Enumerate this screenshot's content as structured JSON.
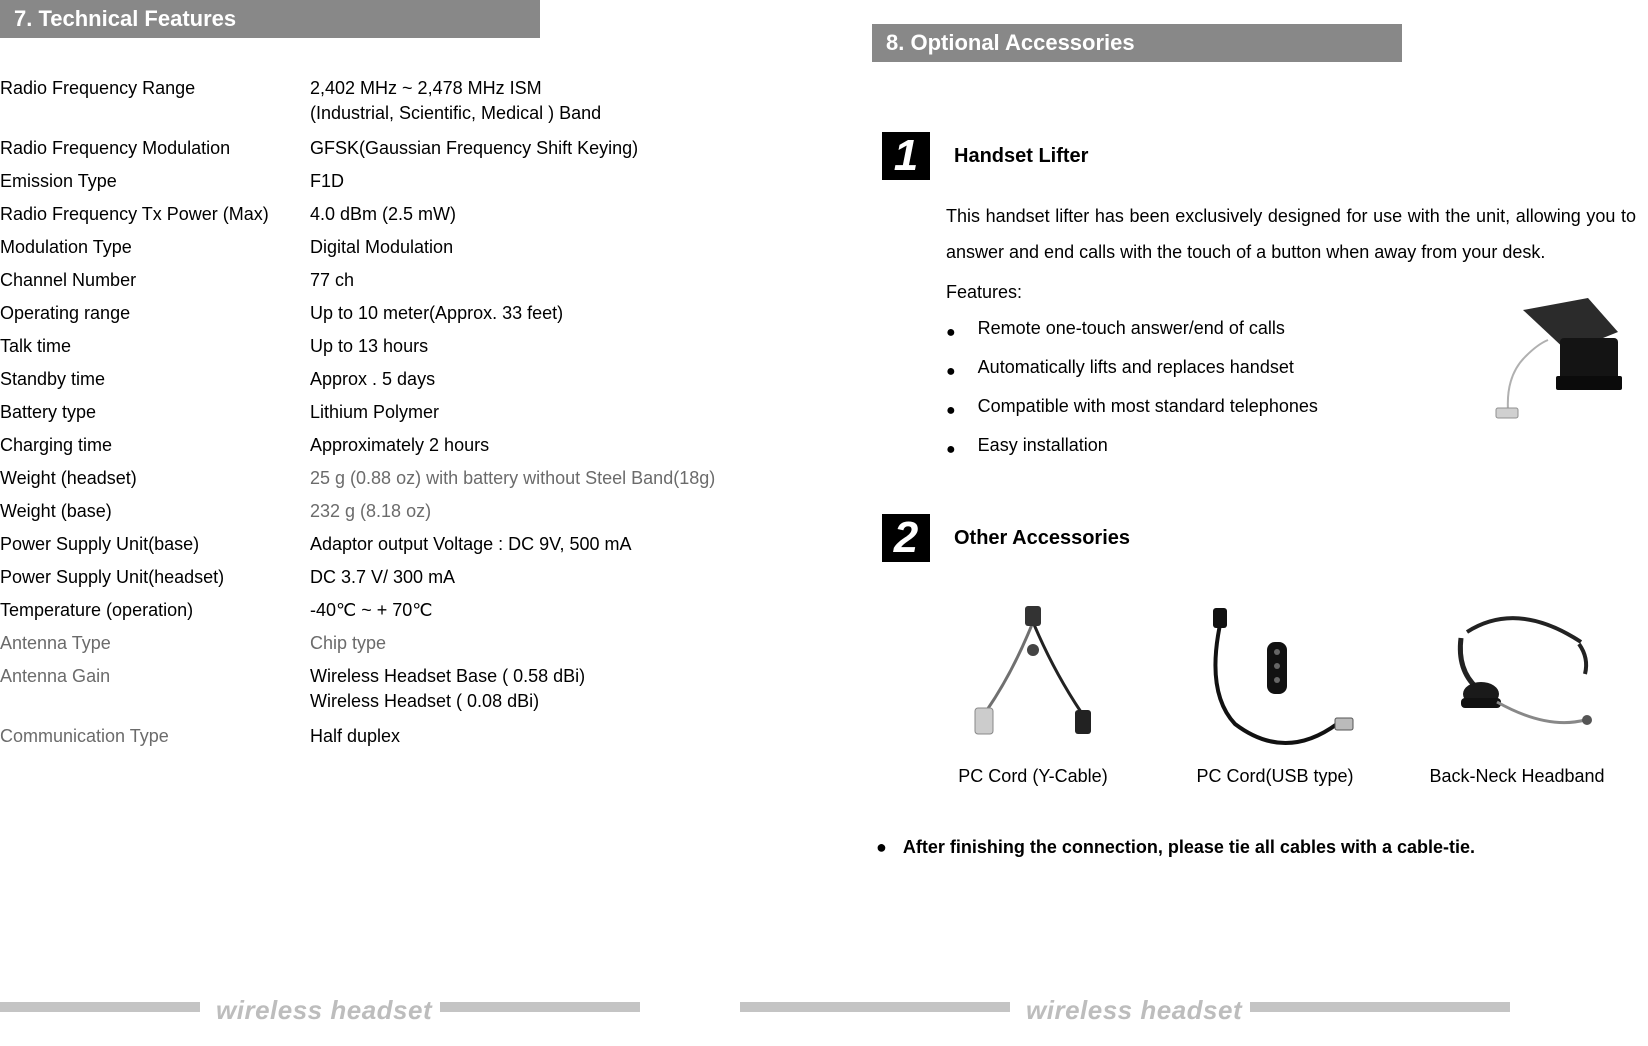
{
  "left": {
    "header": "7. Technical Features",
    "specs": [
      {
        "label": "Radio Frequency Range",
        "value": "2,402 MHz ~ 2,478 MHz ISM",
        "sub": "(Industrial, Scientific, Medical ) Band"
      },
      {
        "label": "Radio Frequency Modulation",
        "value": "GFSK(Gaussian Frequency Shift Keying)"
      },
      {
        "label": "Emission Type",
        "value": " F1D"
      },
      {
        "label": "Radio Frequency Tx Power (Max)",
        "value": "4.0 dBm (2.5 mW)"
      },
      {
        "label": "Modulation Type",
        "value": " Digital Modulation"
      },
      {
        "label": "Channel Number",
        "value": " 77 ch"
      },
      {
        "label": "Operating range",
        "value": "Up to 10 meter(Approx. 33 feet)"
      },
      {
        "label": "Talk time",
        "value": "Up to 13 hours"
      },
      {
        "label": "Standby time",
        "value": "Approx . 5 days"
      },
      {
        "label": "Battery type",
        "value": "Lithium Polymer"
      },
      {
        "label": "Charging time",
        "value": "Approximately 2 hours"
      },
      {
        "label": "Weight (headset)",
        "value": "25 g (0.88 oz) with battery without Steel Band(18g)",
        "gray_value": true
      },
      {
        "label": "Weight (base)",
        "value": "232 g (8.18 oz)",
        "gray_value": true
      },
      {
        "label": "Power Supply Unit(base)",
        "value": "Adaptor output Voltage : DC 9V, 500 mA"
      },
      {
        "label": "Power Supply Unit(headset)",
        "value": "DC 3.7 V/ 300 mA"
      },
      {
        "label": "Temperature (operation)",
        "value": "-40℃  ~ + 70℃"
      },
      {
        "label": "Antenna Type",
        "value": "Chip type",
        "gray_label": true,
        "gray_value": true
      },
      {
        "label": "Antenna Gain",
        "value": " Wireless Headset Base ( 0.58 dBi)",
        "sub": "Wireless Headset ( 0.08 dBi)",
        "gray_label": true
      },
      {
        "label": "Communication Type",
        "value": " Half duplex",
        "gray_label": true
      }
    ]
  },
  "right": {
    "header": "8. Optional Accessories",
    "section1": {
      "num": "1",
      "title": "Handset Lifter",
      "body": "This handset lifter has been exclusively designed for use with the unit, allowing you to answer and end calls with the touch of a button when away from your desk.",
      "features_label": "Features:",
      "features": [
        "Remote one-touch answer/end of calls",
        "Automatically lifts and replaces handset",
        "Compatible with most standard telephones",
        "Easy installation"
      ]
    },
    "section2": {
      "num": "2",
      "title": "Other Accessories",
      "items": [
        {
          "caption": "PC Cord (Y-Cable)"
        },
        {
          "caption": "PC Cord(USB type)"
        },
        {
          "caption": "Back-Neck Headband"
        }
      ]
    },
    "note": "After finishing the connection, please tie all cables with a cable-tie."
  },
  "footer": "wireless headset",
  "colors": {
    "header_bg": "#888888",
    "header_fg": "#ffffff",
    "text": "#000000",
    "gray_text": "#6b6b6b",
    "footer_bar": "#c4c4c4",
    "footer_text": "#bdbdbd",
    "numbox_bg": "#000000",
    "numbox_fg": "#ffffff"
  }
}
